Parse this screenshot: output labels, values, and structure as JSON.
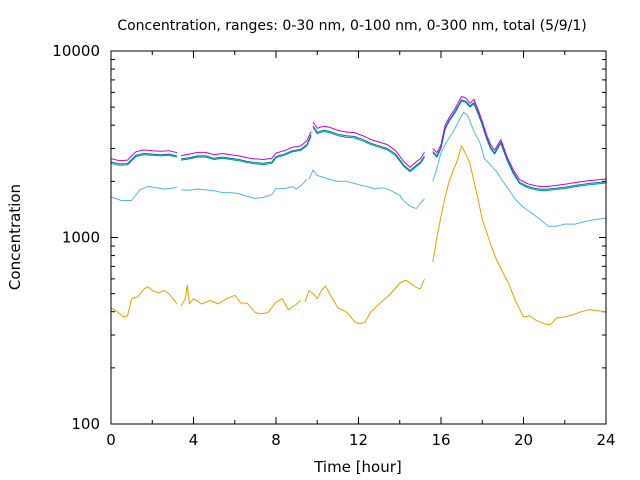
{
  "chart_data": {
    "type": "line",
    "title": "Concentration, ranges: 0-30 nm, 0-100 nm, 0-300 nm, total (5/9/1)",
    "xlabel": "Time [hour]",
    "ylabel": "Concentration",
    "xlim": [
      0,
      24
    ],
    "ylim": [
      100,
      10000
    ],
    "yscale": "log",
    "grid": false,
    "legend": "none",
    "x_ticks": [
      0,
      4,
      8,
      12,
      16,
      20,
      24
    ],
    "x_tick_labels": [
      "0",
      "4",
      "8",
      "12",
      "16",
      "20",
      "24"
    ],
    "y_ticks": [
      100,
      1000,
      10000
    ],
    "y_tick_labels": [
      "100",
      "1000",
      "10000"
    ],
    "series": [
      {
        "color": "#e69f00",
        "segments": [
          {
            "x": [
              0.0,
              0.3,
              0.6,
              0.8,
              1.0,
              1.3,
              1.6,
              1.8,
              2.0,
              2.3,
              2.6,
              2.8,
              3.0,
              3.2
            ],
            "y": [
              420,
              400,
              375,
              380,
              470,
              480,
              530,
              545,
              520,
              505,
              520,
              500,
              470,
              440
            ]
          },
          {
            "x": [
              3.4,
              3.6,
              3.7,
              3.8,
              4.0,
              4.4,
              4.8,
              5.2,
              5.6,
              6.0,
              6.3,
              6.6,
              7.0,
              7.3,
              7.6,
              8.0,
              8.3,
              8.6,
              9.0,
              9.2
            ],
            "y": [
              430,
              470,
              555,
              440,
              470,
              440,
              460,
              440,
              470,
              490,
              445,
              445,
              395,
              390,
              395,
              450,
              470,
              410,
              440,
              460
            ]
          },
          {
            "x": [
              9.4,
              9.6,
              9.8,
              10.0,
              10.2,
              10.4,
              10.6,
              11.0,
              11.4,
              11.8,
              12.0,
              12.3,
              12.6,
              13.0,
              13.4,
              13.7,
              14.0,
              14.3,
              14.6,
              14.8,
              15.0,
              15.2
            ],
            "y": [
              450,
              520,
              500,
              470,
              520,
              550,
              500,
              420,
              400,
              355,
              345,
              350,
              400,
              440,
              480,
              520,
              570,
              590,
              560,
              540,
              530,
              600
            ]
          },
          {
            "x": [
              15.6,
              15.8,
              16.0,
              16.2,
              16.4,
              16.6,
              16.8,
              17.0,
              17.2,
              17.4,
              17.6,
              17.8,
              18.0,
              18.3,
              18.6,
              19.0,
              19.3,
              19.6,
              20.0,
              20.3,
              20.6,
              21.0,
              21.3,
              21.6,
              22.0,
              22.4,
              22.8,
              23.2,
              23.6,
              24.0
            ],
            "y": [
              740,
              1000,
              1300,
              1650,
              2000,
              2300,
              2600,
              3100,
              2800,
              2500,
              2000,
              1600,
              1250,
              1000,
              800,
              650,
              560,
              460,
              375,
              380,
              360,
              345,
              340,
              370,
              375,
              385,
              400,
              410,
              405,
              400
            ]
          }
        ]
      },
      {
        "color": "#56b4e9",
        "segments": [
          {
            "x": [
              0.0,
              0.5,
              1.0,
              1.4,
              1.8,
              2.2,
              2.6,
              3.0,
              3.2
            ],
            "y": [
              1650,
              1580,
              1580,
              1800,
              1880,
              1850,
              1820,
              1840,
              1870
            ]
          },
          {
            "x": [
              3.4,
              3.8,
              4.2,
              4.6,
              5.0,
              5.4,
              5.8,
              6.2,
              6.6,
              7.0,
              7.4,
              7.8,
              8.0,
              8.4,
              8.8,
              9.0,
              9.3,
              9.5
            ],
            "y": [
              1800,
              1790,
              1820,
              1800,
              1780,
              1740,
              1740,
              1720,
              1660,
              1620,
              1640,
              1700,
              1830,
              1830,
              1870,
              1820,
              1940,
              2050
            ]
          },
          {
            "x": [
              9.6,
              9.8,
              10.0,
              10.3,
              10.6,
              11.0,
              11.4,
              11.8,
              12.0,
              12.4,
              12.8,
              13.2,
              13.6,
              14.0,
              14.2,
              14.5,
              14.8,
              15.0,
              15.2
            ],
            "y": [
              2050,
              2300,
              2150,
              2100,
              2050,
              2000,
              2000,
              1950,
              1920,
              1880,
              1820,
              1850,
              1780,
              1680,
              1570,
              1470,
              1430,
              1530,
              1610
            ]
          },
          {
            "x": [
              15.6,
              15.8,
              16.0,
              16.3,
              16.6,
              16.9,
              17.1,
              17.3,
              17.6,
              17.9,
              18.1,
              18.4,
              18.7,
              19.0,
              19.3,
              19.6,
              20.0,
              20.4,
              20.8,
              21.2,
              21.6,
              22.0,
              22.5,
              23.0,
              23.5,
              24.0
            ],
            "y": [
              2000,
              2350,
              2850,
              3300,
              3700,
              4300,
              4700,
              4500,
              3700,
              3200,
              2650,
              2450,
              2250,
              2000,
              1800,
              1600,
              1450,
              1350,
              1250,
              1150,
              1150,
              1180,
              1180,
              1220,
              1250,
              1270
            ]
          }
        ]
      },
      {
        "color": "#009e73",
        "segments": [
          {
            "x": [
              0.0,
              0.4,
              0.8,
              1.2,
              1.6,
              2.0,
              2.4,
              2.8,
              3.2
            ],
            "y": [
              2500,
              2440,
              2450,
              2720,
              2780,
              2760,
              2740,
              2760,
              2700
            ]
          },
          {
            "x": [
              3.4,
              3.8,
              4.2,
              4.6,
              5.0,
              5.4,
              5.8,
              6.2,
              6.6,
              7.0,
              7.4,
              7.8,
              8.0,
              8.4,
              8.8,
              9.2,
              9.5,
              9.7
            ],
            "y": [
              2600,
              2640,
              2700,
              2700,
              2620,
              2660,
              2620,
              2580,
              2520,
              2480,
              2460,
              2500,
              2680,
              2760,
              2880,
              2930,
              3100,
              3500
            ]
          },
          {
            "x": [
              9.8,
              10.0,
              10.3,
              10.6,
              11.0,
              11.4,
              11.8,
              12.2,
              12.6,
              13.0,
              13.4,
              13.8,
              14.2,
              14.5,
              14.8,
              15.0,
              15.2
            ],
            "y": [
              3900,
              3600,
              3700,
              3650,
              3520,
              3450,
              3420,
              3300,
              3150,
              3050,
              2950,
              2750,
              2400,
              2250,
              2400,
              2500,
              2700
            ]
          },
          {
            "x": [
              15.6,
              15.8,
              16.0,
              16.2,
              16.4,
              16.7,
              17.0,
              17.2,
              17.4,
              17.6,
              17.8,
              18.0,
              18.2,
              18.4,
              18.6,
              18.9,
              19.2,
              19.5,
              19.8,
              20.2,
              20.6,
              21.0,
              21.4,
              22.0,
              22.6,
              23.2,
              24.0
            ],
            "y": [
              2850,
              2700,
              3000,
              3800,
              4200,
              4700,
              5400,
              5300,
              5000,
              5200,
              4600,
              4000,
              3400,
              3000,
              2800,
              3200,
              2600,
              2200,
              1950,
              1850,
              1800,
              1780,
              1800,
              1830,
              1880,
              1920,
              1960
            ]
          }
        ]
      },
      {
        "color": "#0072b2",
        "segments": [
          {
            "x": [
              0.0,
              0.4,
              0.8,
              1.2,
              1.6,
              2.0,
              2.4,
              2.8,
              3.2
            ],
            "y": [
              2540,
              2480,
              2490,
              2760,
              2820,
              2800,
              2780,
              2800,
              2740
            ]
          },
          {
            "x": [
              3.4,
              3.8,
              4.2,
              4.6,
              5.0,
              5.4,
              5.8,
              6.2,
              6.6,
              7.0,
              7.4,
              7.8,
              8.0,
              8.4,
              8.8,
              9.2,
              9.5,
              9.7
            ],
            "y": [
              2640,
              2680,
              2740,
              2740,
              2660,
              2700,
              2660,
              2620,
              2560,
              2520,
              2500,
              2540,
              2720,
              2800,
              2920,
              2970,
              3150,
              3560
            ]
          },
          {
            "x": [
              9.8,
              10.0,
              10.3,
              10.6,
              11.0,
              11.4,
              11.8,
              12.2,
              12.6,
              13.0,
              13.4,
              13.8,
              14.2,
              14.5,
              14.8,
              15.0,
              15.2
            ],
            "y": [
              3960,
              3660,
              3760,
              3710,
              3580,
              3510,
              3480,
              3360,
              3200,
              3100,
              3000,
              2800,
              2440,
              2290,
              2440,
              2540,
              2740
            ]
          },
          {
            "x": [
              15.6,
              15.8,
              16.0,
              16.2,
              16.4,
              16.7,
              17.0,
              17.2,
              17.4,
              17.6,
              17.8,
              18.0,
              18.2,
              18.4,
              18.6,
              18.9,
              19.2,
              19.5,
              19.8,
              20.2,
              20.6,
              21.0,
              21.4,
              22.0,
              22.6,
              23.2,
              24.0
            ],
            "y": [
              2890,
              2740,
              3040,
              3860,
              4260,
              4780,
              5480,
              5380,
              5080,
              5280,
              4680,
              4060,
              3460,
              3050,
              2840,
              3250,
              2640,
              2240,
              1980,
              1880,
              1830,
              1810,
              1830,
              1860,
              1910,
              1950,
              1990
            ]
          }
        ]
      },
      {
        "color": "#cc00cc",
        "segments": [
          {
            "x": [
              0.0,
              0.4,
              0.8,
              1.2,
              1.6,
              2.0,
              2.4,
              2.8,
              3.2
            ],
            "y": [
              2650,
              2580,
              2600,
              2880,
              2950,
              2920,
              2900,
              2920,
              2850
            ]
          },
          {
            "x": [
              3.4,
              3.8,
              4.2,
              4.6,
              5.0,
              5.4,
              5.8,
              6.2,
              6.6,
              7.0,
              7.4,
              7.8,
              8.0,
              8.4,
              8.8,
              9.2,
              9.5,
              9.7
            ],
            "y": [
              2750,
              2800,
              2860,
              2860,
              2780,
              2820,
              2780,
              2740,
              2680,
              2640,
              2620,
              2660,
              2840,
              2920,
              3050,
              3100,
              3300,
              3700
            ]
          },
          {
            "x": [
              9.8,
              10.0,
              10.3,
              10.6,
              11.0,
              11.4,
              11.8,
              12.2,
              12.6,
              13.0,
              13.4,
              13.8,
              14.2,
              14.5,
              14.8,
              15.0,
              15.2
            ],
            "y": [
              4150,
              3850,
              3950,
              3900,
              3750,
              3680,
              3650,
              3520,
              3350,
              3250,
              3150,
              2920,
              2550,
              2380,
              2550,
              2650,
              2860
            ]
          },
          {
            "x": [
              15.6,
              15.8,
              16.0,
              16.2,
              16.4,
              16.7,
              17.0,
              17.2,
              17.4,
              17.6,
              17.8,
              18.0,
              18.2,
              18.4,
              18.6,
              18.9,
              19.2,
              19.5,
              19.8,
              20.2,
              20.6,
              21.0,
              21.4,
              22.0,
              22.6,
              23.2,
              24.0
            ],
            "y": [
              3000,
              2850,
              3150,
              4000,
              4400,
              4950,
              5700,
              5600,
              5250,
              5500,
              4850,
              4200,
              3580,
              3150,
              2940,
              3350,
              2720,
              2310,
              2050,
              1940,
              1890,
              1870,
              1890,
              1930,
              1980,
              2020,
              2060
            ]
          }
        ]
      }
    ]
  }
}
